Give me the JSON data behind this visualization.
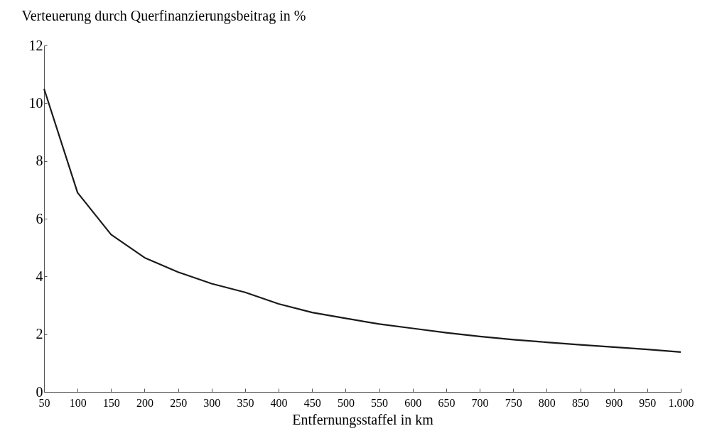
{
  "chart_data": {
    "type": "line",
    "xlabel": "Entfernungsstaffel in km",
    "ylabel": "Verteuerung durch Querfinanzierungsbeitrag in %",
    "x": [
      50,
      100,
      150,
      200,
      250,
      300,
      350,
      400,
      450,
      500,
      550,
      600,
      650,
      700,
      750,
      800,
      850,
      900,
      950,
      1000
    ],
    "series": [
      {
        "color": "#1a1a1a",
        "values": [
          10.5,
          6.9,
          5.45,
          4.65,
          4.15,
          3.75,
          3.45,
          3.05,
          2.75,
          2.55,
          2.35,
          2.2,
          2.05,
          1.92,
          1.81,
          1.72,
          1.63,
          1.55,
          1.47,
          1.38
        ]
      }
    ],
    "xlim": [
      50,
      1000
    ],
    "ylim": [
      0,
      12
    ],
    "xticks": [
      50,
      100,
      150,
      200,
      250,
      300,
      350,
      400,
      450,
      500,
      550,
      600,
      650,
      700,
      750,
      800,
      850,
      900,
      950,
      {
        "value": 1000,
        "label": "1.000"
      }
    ],
    "yticks": [
      0,
      2,
      4,
      6,
      8,
      10,
      12
    ],
    "grid": false,
    "legend": false,
    "marker": "none",
    "line_style": "solid"
  }
}
